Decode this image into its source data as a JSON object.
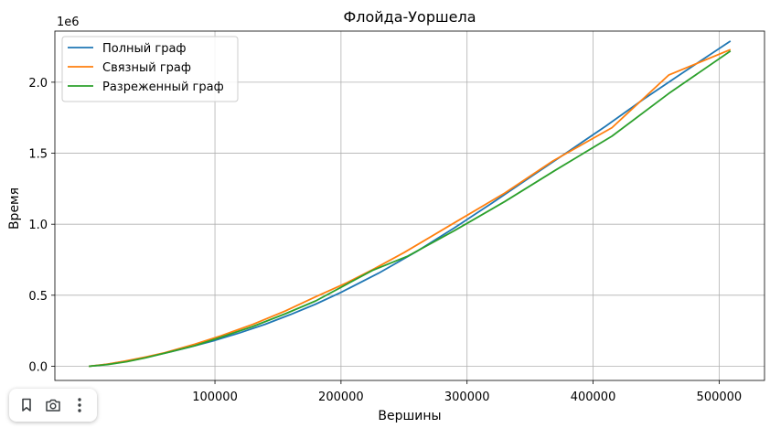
{
  "chart_data": {
    "type": "line",
    "title": "Флойда-Уоршела",
    "xlabel": "Вершины",
    "ylabel": "Время",
    "offset_text": "1e6",
    "xlim": [
      -27000,
      536000
    ],
    "ylim": [
      -100000,
      2360000
    ],
    "x_ticks": [
      100000,
      200000,
      300000,
      400000,
      500000
    ],
    "x_tick_labels": [
      "100000",
      "200000",
      "300000",
      "400000",
      "500000"
    ],
    "y_ticks": [
      0,
      500000,
      1000000,
      1500000,
      2000000
    ],
    "y_tick_labels": [
      "0.0",
      "0.5",
      "1.0",
      "1.5",
      "2.0"
    ],
    "grid": true,
    "legend_position": "top-left",
    "series": [
      {
        "name": "Полный граф",
        "color": "#1f77b4",
        "x": [
          0,
          10000,
          20000,
          35000,
          50000,
          65000,
          80000,
          100000,
          120000,
          140000,
          160000,
          180000,
          200000,
          230000,
          260000,
          290000,
          320000,
          350000,
          380000,
          410000,
          440000,
          470000,
          509000
        ],
        "y": [
          0,
          9000,
          22000,
          45000,
          72000,
          102000,
          135000,
          182000,
          236000,
          296000,
          364000,
          438000,
          520000,
          656000,
          808000,
          975000,
          1150000,
          1330000,
          1510000,
          1690000,
          1880000,
          2060000,
          2290000
        ]
      },
      {
        "name": "Связный граф",
        "color": "#ff7f0e",
        "x": [
          0,
          15000,
          28000,
          45000,
          60000,
          84000,
          105000,
          130000,
          156000,
          180000,
          205000,
          225000,
          250000,
          288000,
          330000,
          368000,
          415000,
          460000,
          509000
        ],
        "y": [
          0,
          15000,
          35000,
          65000,
          95000,
          155000,
          215000,
          295000,
          390000,
          490000,
          590000,
          680000,
          800000,
          1000000,
          1220000,
          1445000,
          1680000,
          2050000,
          2230000
        ]
      },
      {
        "name": "Разреженный граф",
        "color": "#2ca02c",
        "x": [
          0,
          15000,
          30000,
          45000,
          60000,
          84000,
          105000,
          130000,
          156000,
          180000,
          205000,
          225000,
          253000,
          290000,
          330000,
          370000,
          415000,
          460000,
          509000
        ],
        "y": [
          0,
          12000,
          32000,
          60000,
          92000,
          145000,
          205000,
          280000,
          370000,
          460000,
          580000,
          675000,
          775000,
          955000,
          1160000,
          1380000,
          1620000,
          1920000,
          2220000
        ]
      }
    ]
  },
  "toolbar": {
    "buttons": [
      {
        "name": "bookmark-button",
        "icon": "bookmark-icon"
      },
      {
        "name": "camera-button",
        "icon": "camera-icon"
      },
      {
        "name": "more-options-button",
        "icon": "more-vertical-icon"
      }
    ]
  }
}
